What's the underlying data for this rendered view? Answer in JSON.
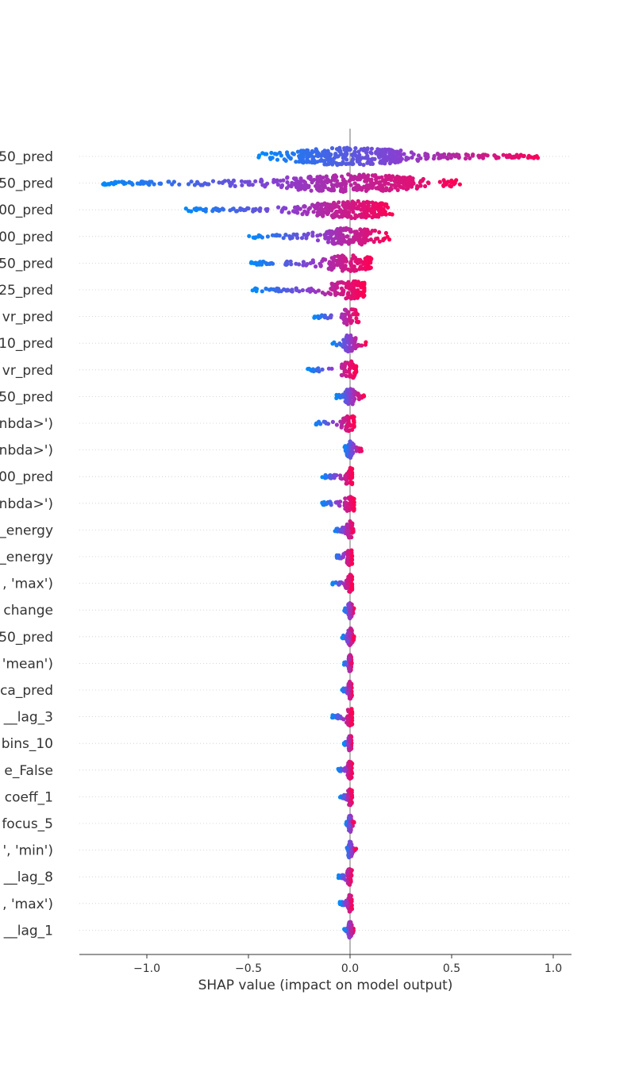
{
  "chart_data": {
    "type": "scatter",
    "subtype": "shap-beeswarm",
    "xlabel": "SHAP value (impact on model output)",
    "xlim": [
      -1.33,
      1.09
    ],
    "xticks": [
      -1.0,
      -0.5,
      0.0,
      0.5,
      1.0
    ],
    "xtick_labels": [
      "−1.0",
      "−0.5",
      "0.0",
      "0.5",
      "1.0"
    ],
    "grid": "horizontal dotted per feature row",
    "colors": {
      "low": "#008bfb",
      "high": "#ff0052",
      "zero_line": "#999999",
      "axis": "#333333"
    },
    "features": [
      {
        "label": "50_pred",
        "range": [
          -0.47,
          0.97
        ]
      },
      {
        "label": "50_pred",
        "range": [
          -1.23,
          0.55
        ]
      },
      {
        "label": "00_pred",
        "range": [
          -0.82,
          0.21
        ]
      },
      {
        "label": "00_pred",
        "range": [
          -0.5,
          0.2
        ]
      },
      {
        "label": "50_pred",
        "range": [
          -0.49,
          0.11
        ]
      },
      {
        "label": "25_pred",
        "range": [
          -0.48,
          0.07
        ]
      },
      {
        "label": "vr_pred",
        "range": [
          -0.18,
          0.05
        ]
      },
      {
        "label": "10_pred",
        "range": [
          -0.09,
          0.08
        ]
      },
      {
        "label": "vr_pred",
        "range": [
          -0.21,
          0.03
        ]
      },
      {
        "label": "50_pred",
        "range": [
          -0.07,
          0.07
        ]
      },
      {
        "label": "nbda>')",
        "range": [
          -0.18,
          0.02
        ]
      },
      {
        "label": "nbda>')",
        "range": [
          -0.03,
          0.06
        ]
      },
      {
        "label": "00_pred",
        "range": [
          -0.14,
          0.01
        ]
      },
      {
        "label": "nbda>')",
        "range": [
          -0.14,
          0.02
        ]
      },
      {
        "label": "_energy",
        "range": [
          -0.08,
          0.02
        ]
      },
      {
        "label": "_energy",
        "range": [
          -0.08,
          0.01
        ]
      },
      {
        "label": ", 'max')",
        "range": [
          -0.09,
          0.01
        ]
      },
      {
        "label": "change",
        "range": [
          -0.03,
          0.02
        ]
      },
      {
        "label": "50_pred",
        "range": [
          -0.04,
          0.02
        ]
      },
      {
        "label": "'mean')",
        "range": [
          -0.03,
          0.01
        ]
      },
      {
        "label": "ca_pred",
        "range": [
          -0.04,
          0.01
        ]
      },
      {
        "label": "__lag_3",
        "range": [
          -0.09,
          0.01
        ]
      },
      {
        "label": "bins_10",
        "range": [
          -0.03,
          0.01
        ]
      },
      {
        "label": "e_False",
        "range": [
          -0.06,
          0.01
        ]
      },
      {
        "label": "coeff_1",
        "range": [
          -0.05,
          0.01
        ]
      },
      {
        "label": "focus_5",
        "range": [
          -0.02,
          0.02
        ]
      },
      {
        "label": "', 'min')",
        "range": [
          -0.02,
          0.03
        ]
      },
      {
        "label": "__lag_8",
        "range": [
          -0.06,
          0.01
        ]
      },
      {
        "label": ", 'max')",
        "range": [
          -0.05,
          0.01
        ]
      },
      {
        "label": "__lag_1",
        "range": [
          -0.03,
          0.02
        ]
      }
    ]
  }
}
